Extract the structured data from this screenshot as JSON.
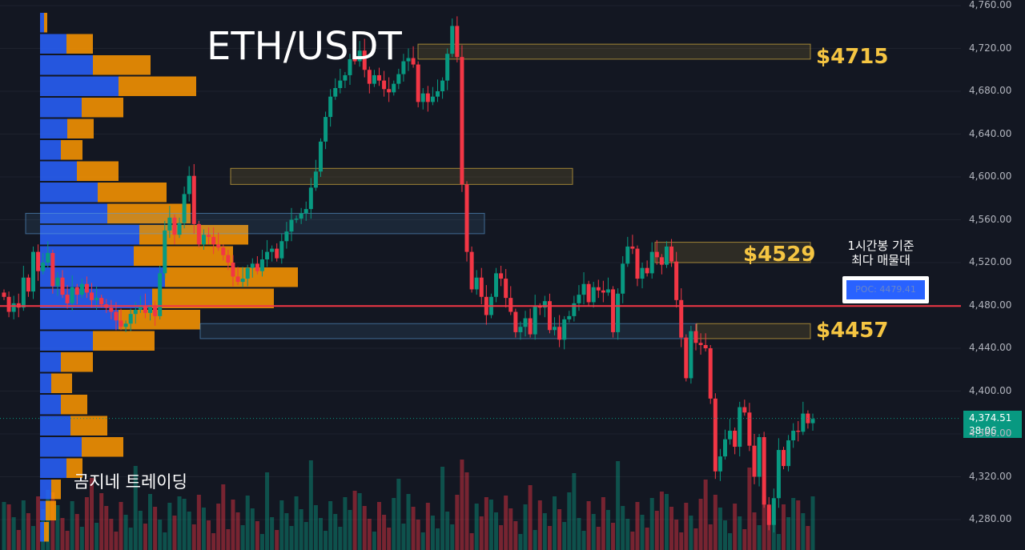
{
  "chart_data": {
    "type": "candlestick",
    "title": "ETH/USDT",
    "y_axis": {
      "ticks": [
        "4,760.00",
        "4,720.00",
        "4,680.00",
        "4,640.00",
        "4,600.00",
        "4,560.00",
        "4,520.00",
        "4,480.00",
        "4,440.00",
        "4,400.00",
        "4,360.00",
        "4,320.00",
        "4,280.00"
      ],
      "tick_values": [
        4760,
        4720,
        4680,
        4640,
        4600,
        4560,
        4520,
        4480,
        4440,
        4400,
        4360,
        4320,
        4280
      ],
      "range": [
        4266,
        4763
      ]
    },
    "current_price": {
      "label": "4,374.51",
      "value": 4374.51,
      "countdown": "38:06"
    },
    "level_labels": [
      {
        "text": "$4715",
        "value": 4715
      },
      {
        "text": "$4529",
        "value": 4529
      },
      {
        "text": "$4457",
        "value": 4457
      }
    ],
    "poc": {
      "label": "POC: 4479.41",
      "value": 4479.41
    },
    "poc_note": [
      "1시간봉 기준",
      "최다 매물대"
    ],
    "watermark": "곰지네 트레이딩",
    "zones": [
      {
        "low": 4710,
        "high": 4724,
        "color": "yellow"
      },
      {
        "low": 4593,
        "high": 4608,
        "color": "yellow"
      },
      {
        "low": 4547,
        "high": 4566,
        "color": "blue"
      },
      {
        "low": 4520,
        "high": 4539,
        "color": "yellow"
      },
      {
        "low": 4449,
        "high": 4463,
        "color": "blue"
      },
      {
        "low": 4449,
        "high": 4463,
        "color": "yellow"
      }
    ],
    "colors": {
      "background": "#131722",
      "up": "#089981",
      "down": "#f23645",
      "profile_up": "#2962ff",
      "profile_down": "#ff9800",
      "poc_line": "#f23645",
      "zone_yellow": "#f5c542",
      "zone_blue": "#5b9bd5"
    },
    "closes": [
      4488,
      4474,
      4482,
      4478,
      4506,
      4493,
      4530,
      4512,
      4520,
      4529,
      4498,
      4506,
      4490,
      4482,
      4497,
      4490,
      4500,
      4492,
      4485,
      4487,
      4481,
      4478,
      4474,
      4466,
      4460,
      4463,
      4472,
      4476,
      4480,
      4473,
      4479,
      4470,
      4510,
      4550,
      4562,
      4546,
      4557,
      4584,
      4601,
      4556,
      4537,
      4546,
      4544,
      4537,
      4534,
      4527,
      4520,
      4507,
      4502,
      4505,
      4515,
      4519,
      4512,
      4523,
      4530,
      4533,
      4524,
      4540,
      4549,
      4560,
      4561,
      4566,
      4570,
      4590,
      4605,
      4633,
      4656,
      4675,
      4683,
      4690,
      4695,
      4710,
      4708,
      4718,
      4700,
      4687,
      4695,
      4690,
      4682,
      4679,
      4687,
      4696,
      4708,
      4711,
      4705,
      4670,
      4678,
      4670,
      4675,
      4680,
      4690,
      4715,
      4741,
      4712,
      4593,
      4530,
      4495,
      4506,
      4488,
      4471,
      4488,
      4510,
      4505,
      4487,
      4474,
      4455,
      4460,
      4468,
      4453,
      4479,
      4478,
      4484,
      4457,
      4460,
      4448,
      4467,
      4470,
      4482,
      4490,
      4500,
      4483,
      4497,
      4494,
      4492,
      4495,
      4455,
      4491,
      4519,
      4535,
      4533,
      4505,
      4515,
      4510,
      4530,
      4525,
      4518,
      4535,
      4521,
      4485,
      4450,
      4412,
      4456,
      4445,
      4443,
      4440,
      4393,
      4325,
      4339,
      4355,
      4363,
      4348,
      4385,
      4380,
      4349,
      4320,
      4357,
      4294,
      4275,
      4300,
      4345,
      4330,
      4354,
      4363,
      4362,
      4379,
      4370,
      4374
    ],
    "volume_profile": [
      {
        "up": 5,
        "down": 4
      },
      {
        "up": 33,
        "down": 33
      },
      {
        "up": 66,
        "down": 72
      },
      {
        "up": 98,
        "down": 97
      },
      {
        "up": 52,
        "down": 52
      },
      {
        "up": 34,
        "down": 33
      },
      {
        "up": 26,
        "down": 27
      },
      {
        "up": 46,
        "down": 52
      },
      {
        "up": 72,
        "down": 86
      },
      {
        "up": 84,
        "down": 104
      },
      {
        "up": 124,
        "down": 136
      },
      {
        "up": 117,
        "down": 124
      },
      {
        "up": 156,
        "down": 166
      },
      {
        "up": 140,
        "down": 152
      },
      {
        "up": 98,
        "down": 102
      },
      {
        "up": 66,
        "down": 77
      },
      {
        "up": 26,
        "down": 40
      },
      {
        "up": 14,
        "down": 26
      },
      {
        "up": 26,
        "down": 33
      },
      {
        "up": 38,
        "down": 46
      },
      {
        "up": 52,
        "down": 52
      },
      {
        "up": 33,
        "down": 20
      },
      {
        "up": 14,
        "down": 12
      },
      {
        "up": 7,
        "down": 13
      },
      {
        "up": 5,
        "down": 6
      }
    ]
  }
}
